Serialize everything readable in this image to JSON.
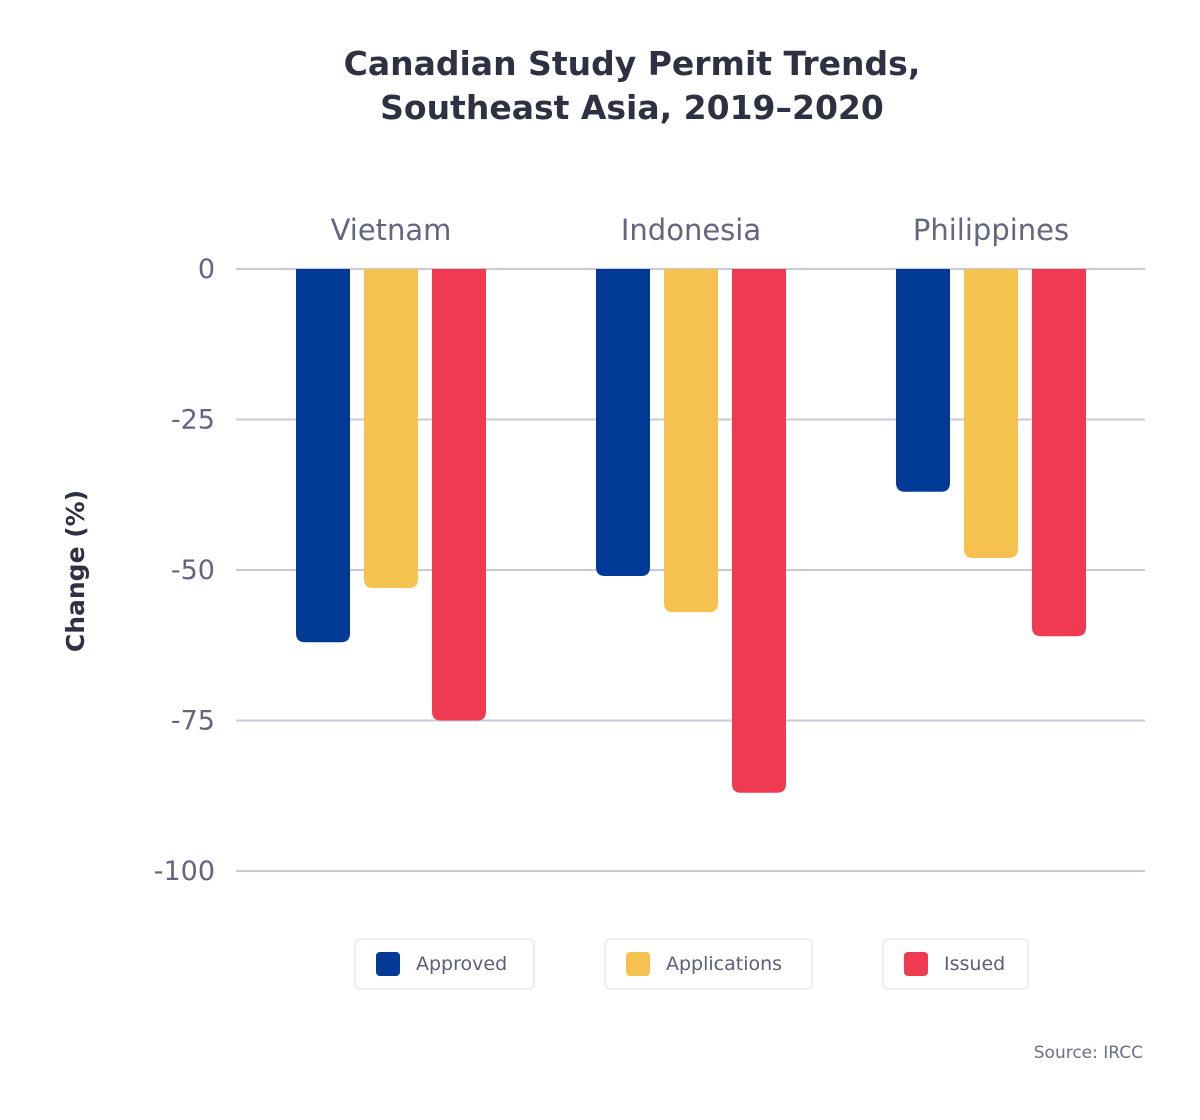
{
  "chart_data": {
    "type": "bar",
    "title": "Canadian Study Permit Trends, Southeast Asia, 2019–2020",
    "title_lines": [
      "Canadian Study Permit Trends,",
      "Southeast Asia, 2019–2020"
    ],
    "ylabel": "Change (%)",
    "xlabel": "",
    "ylim": [
      -100,
      0
    ],
    "yticks": [
      0,
      -25,
      -50,
      -75,
      -100
    ],
    "grid": true,
    "categories": [
      "Vietnam",
      "Indonesia",
      "Philippines"
    ],
    "series": [
      {
        "name": "Approved",
        "color": "#003a96",
        "values": [
          -62,
          -51,
          -37
        ]
      },
      {
        "name": "Applications",
        "color": "#f5c14f",
        "values": [
          -53,
          -57,
          -48
        ]
      },
      {
        "name": "Issued",
        "color": "#ef3a52",
        "values": [
          -75,
          -87,
          -61
        ]
      }
    ],
    "legend_position": "bottom",
    "source": "Source: IRCC"
  }
}
